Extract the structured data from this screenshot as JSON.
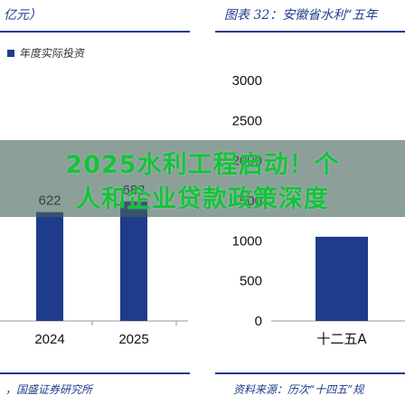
{
  "header": {
    "left_caption": "亿元）",
    "right_caption": "图表 32：安徽省水利“五年"
  },
  "footer": {
    "left_source": "，国盛证券研究所",
    "right_source": "资料来源：历次“十四五”规"
  },
  "overlay": {
    "line1": "2025水利工程启动！个",
    "line2": "人和企业贷款政策深度"
  },
  "colors": {
    "bar": "#1f3b8c",
    "text_blue": "#1f3b8c",
    "overlay_text": "#12c43a"
  },
  "chart_data": [
    {
      "type": "bar",
      "categories": [
        "2024",
        "2025"
      ],
      "values": [
        622,
        683
      ],
      "legend": [
        "年度实际投资"
      ],
      "data_labels": [
        "622",
        "683"
      ]
    },
    {
      "type": "bar",
      "categories": [
        "十二五A"
      ],
      "values": [
        1050
      ],
      "yticks": [
        "0",
        "500",
        "1000",
        "1500",
        "2000",
        "2500",
        "3000"
      ],
      "ylim": [
        0,
        3000
      ]
    }
  ]
}
